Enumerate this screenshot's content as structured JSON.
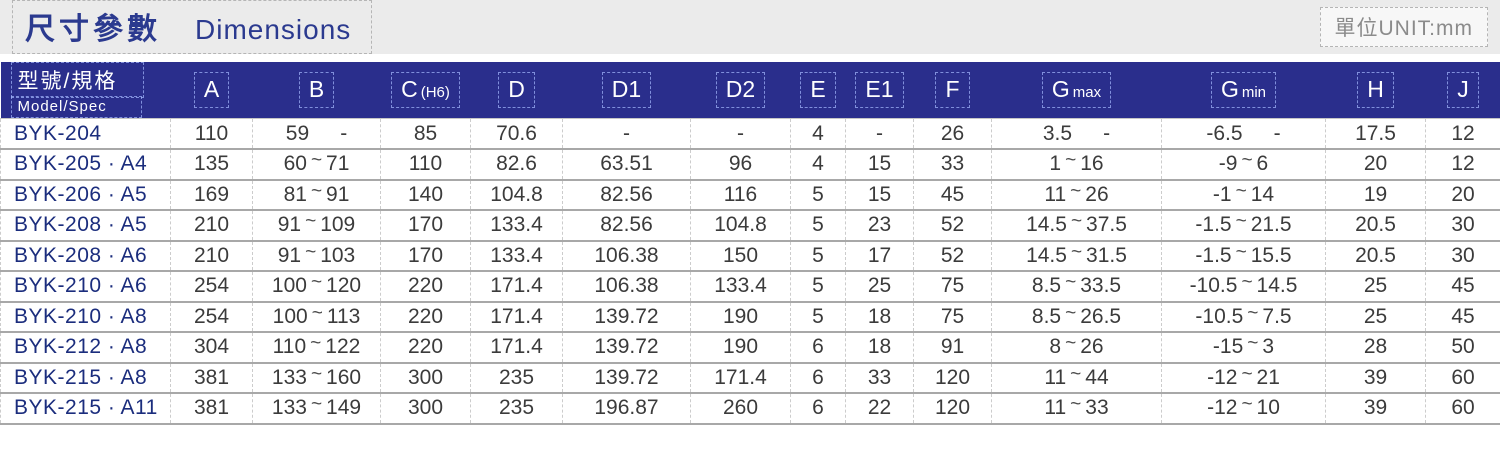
{
  "header": {
    "title_cjk": "尺寸參數",
    "title_en": "Dimensions",
    "unit_label": "單位UNIT:mm"
  },
  "colors": {
    "header_bg": "#2a2e8c",
    "title_text": "#2b3a8f",
    "model_text": "#1b2d7d",
    "value_text": "#3b3b3b"
  },
  "table": {
    "columns": [
      {
        "main": "型號/規格",
        "sub": "Model/Spec"
      },
      {
        "main": "A"
      },
      {
        "main": "B"
      },
      {
        "main": "C",
        "sub": "(H6)"
      },
      {
        "main": "D"
      },
      {
        "main": "D1"
      },
      {
        "main": "D2"
      },
      {
        "main": "E"
      },
      {
        "main": "E1"
      },
      {
        "main": "F"
      },
      {
        "main": "G",
        "sub": "max"
      },
      {
        "main": "G",
        "sub": "min"
      },
      {
        "main": "H"
      },
      {
        "main": "J"
      }
    ],
    "rows": [
      {
        "model": "BYK-204",
        "values": [
          "110",
          "59 -",
          "85",
          "70.6",
          "-",
          "-",
          "4",
          "-",
          "26",
          "3.5 -",
          "-6.5 -",
          "17.5",
          "12"
        ]
      },
      {
        "model": "BYK-205 · A4",
        "values": [
          "135",
          "60~71",
          "110",
          "82.6",
          "63.51",
          "96",
          "4",
          "15",
          "33",
          "1~16",
          "-9~6",
          "20",
          "12"
        ]
      },
      {
        "model": "BYK-206 · A5",
        "values": [
          "169",
          "81~91",
          "140",
          "104.8",
          "82.56",
          "116",
          "5",
          "15",
          "45",
          "11~26",
          "-1~14",
          "19",
          "20"
        ]
      },
      {
        "model": "BYK-208 · A5",
        "values": [
          "210",
          "91~109",
          "170",
          "133.4",
          "82.56",
          "104.8",
          "5",
          "23",
          "52",
          "14.5~37.5",
          "-1.5~21.5",
          "20.5",
          "30"
        ]
      },
      {
        "model": "BYK-208 · A6",
        "values": [
          "210",
          "91~103",
          "170",
          "133.4",
          "106.38",
          "150",
          "5",
          "17",
          "52",
          "14.5~31.5",
          "-1.5~15.5",
          "20.5",
          "30"
        ]
      },
      {
        "model": "BYK-210 · A6",
        "values": [
          "254",
          "100~120",
          "220",
          "171.4",
          "106.38",
          "133.4",
          "5",
          "25",
          "75",
          "8.5~33.5",
          "-10.5~14.5",
          "25",
          "45"
        ]
      },
      {
        "model": "BYK-210 · A8",
        "values": [
          "254",
          "100~113",
          "220",
          "171.4",
          "139.72",
          "190",
          "5",
          "18",
          "75",
          "8.5~26.5",
          "-10.5~7.5",
          "25",
          "45"
        ]
      },
      {
        "model": "BYK-212 · A8",
        "values": [
          "304",
          "110~122",
          "220",
          "171.4",
          "139.72",
          "190",
          "6",
          "18",
          "91",
          "8~26",
          "-15~3",
          "28",
          "50"
        ]
      },
      {
        "model": "BYK-215 · A8",
        "values": [
          "381",
          "133~160",
          "300",
          "235",
          "139.72",
          "171.4",
          "6",
          "33",
          "120",
          "11~44",
          "-12~21",
          "39",
          "60"
        ]
      },
      {
        "model": "BYK-215 · A11",
        "values": [
          "381",
          "133~149",
          "300",
          "235",
          "196.87",
          "260",
          "6",
          "22",
          "120",
          "11~33",
          "-12~10",
          "39",
          "60"
        ]
      }
    ]
  }
}
